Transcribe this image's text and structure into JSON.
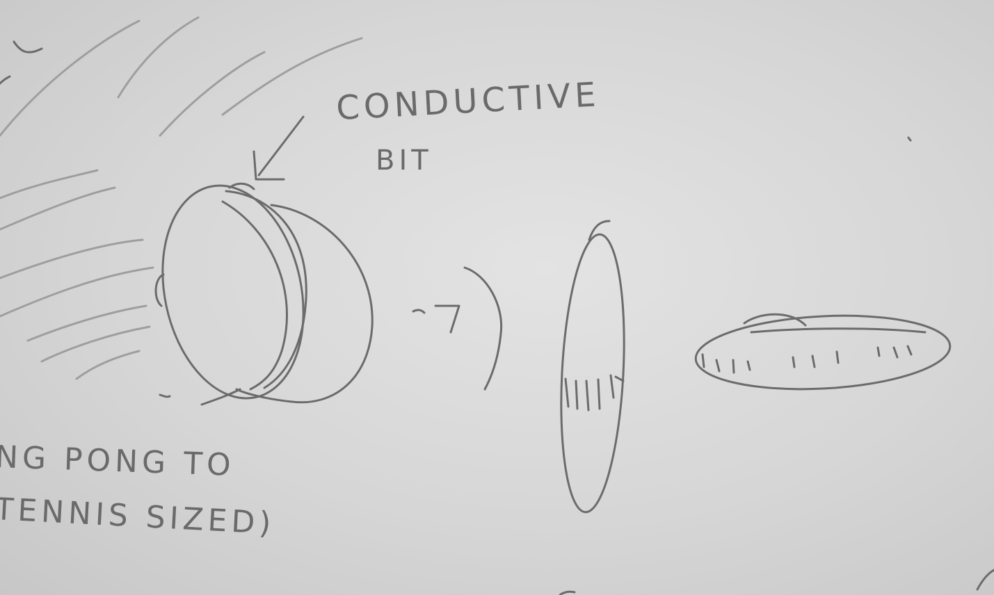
{
  "labels": {
    "conductive": "CONDUCTIVE",
    "bit": "BIT",
    "line1": "NG PONG TO",
    "line2": "TENNIS SIZED)"
  },
  "colors": {
    "paper": "#d6d6d6",
    "pencil": "#6b6b6b",
    "pencil_faint": "#9e9e9e"
  }
}
